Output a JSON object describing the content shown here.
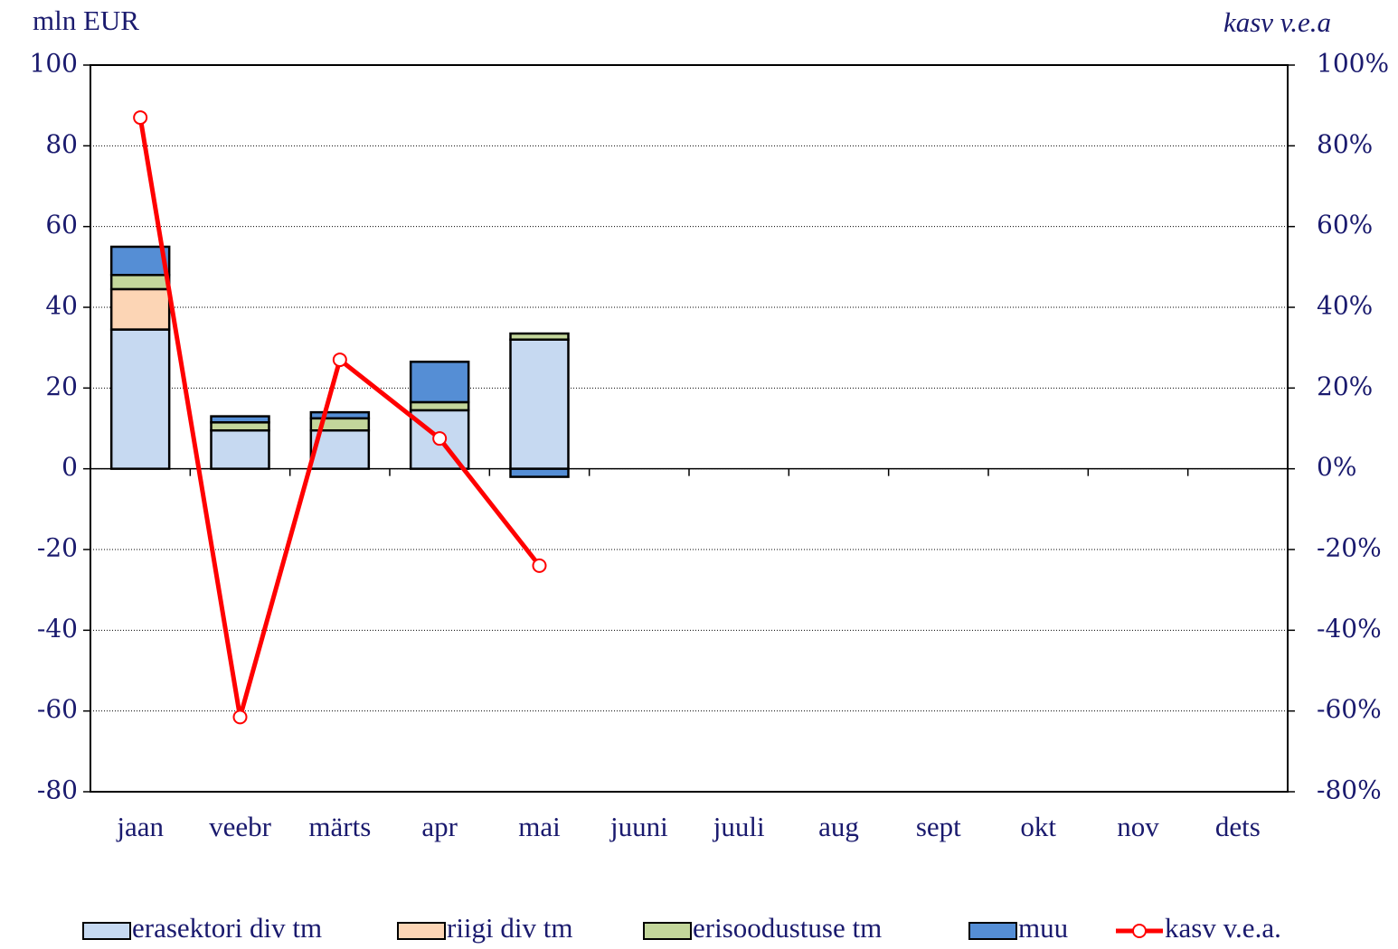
{
  "chart_data": {
    "type": "bar",
    "y_label": "mln EUR",
    "y2_label": "kasv  v.e.a",
    "categories": [
      "jaan",
      "veebr",
      "märts",
      "apr",
      "mai",
      "juuni",
      "juuli",
      "aug",
      "sept",
      "okt",
      "nov",
      "dets"
    ],
    "stacked": true,
    "series": [
      {
        "name": "erasektori div tm",
        "color": "#c6d9f1",
        "values": [
          34.5,
          9.5,
          9.5,
          14.5,
          32,
          null,
          null,
          null,
          null,
          null,
          null,
          null
        ]
      },
      {
        "name": "riigi div tm",
        "color": "#fcd5b5",
        "values": [
          10,
          0,
          0,
          0,
          0,
          null,
          null,
          null,
          null,
          null,
          null,
          null
        ]
      },
      {
        "name": "erisoodustuse tm",
        "color": "#c3d69b",
        "values": [
          3.5,
          2,
          3,
          2,
          1.5,
          null,
          null,
          null,
          null,
          null,
          null,
          null
        ]
      },
      {
        "name": "muu",
        "color": "#558ed5",
        "values": [
          7,
          1.5,
          1.5,
          10,
          -2,
          null,
          null,
          null,
          null,
          null,
          null,
          null
        ]
      },
      {
        "name": "kasv v.e.a.",
        "color": "#ff0000",
        "type": "line",
        "axis": "y2",
        "values": [
          87,
          -61.5,
          27,
          7.5,
          -24,
          null,
          null,
          null,
          null,
          null,
          null,
          null
        ]
      }
    ],
    "ylim": [
      -80,
      100
    ],
    "yticks": [
      -80,
      -60,
      -40,
      -20,
      0,
      20,
      40,
      60,
      80,
      100
    ],
    "y2lim": [
      -80,
      100
    ],
    "y2ticks": [
      {
        "value": -80,
        "label": "-80%"
      },
      {
        "value": -60,
        "label": "-60%"
      },
      {
        "value": -40,
        "label": "-40%"
      },
      {
        "value": -20,
        "label": "-20%"
      },
      {
        "value": 0,
        "label": "0%"
      },
      {
        "value": 20,
        "label": "20%"
      },
      {
        "value": 40,
        "label": "40%"
      },
      {
        "value": 60,
        "label": "60%"
      },
      {
        "value": 80,
        "label": "80%"
      },
      {
        "value": 100,
        "label": "100%"
      }
    ],
    "grid": true,
    "legend": "bottom"
  }
}
